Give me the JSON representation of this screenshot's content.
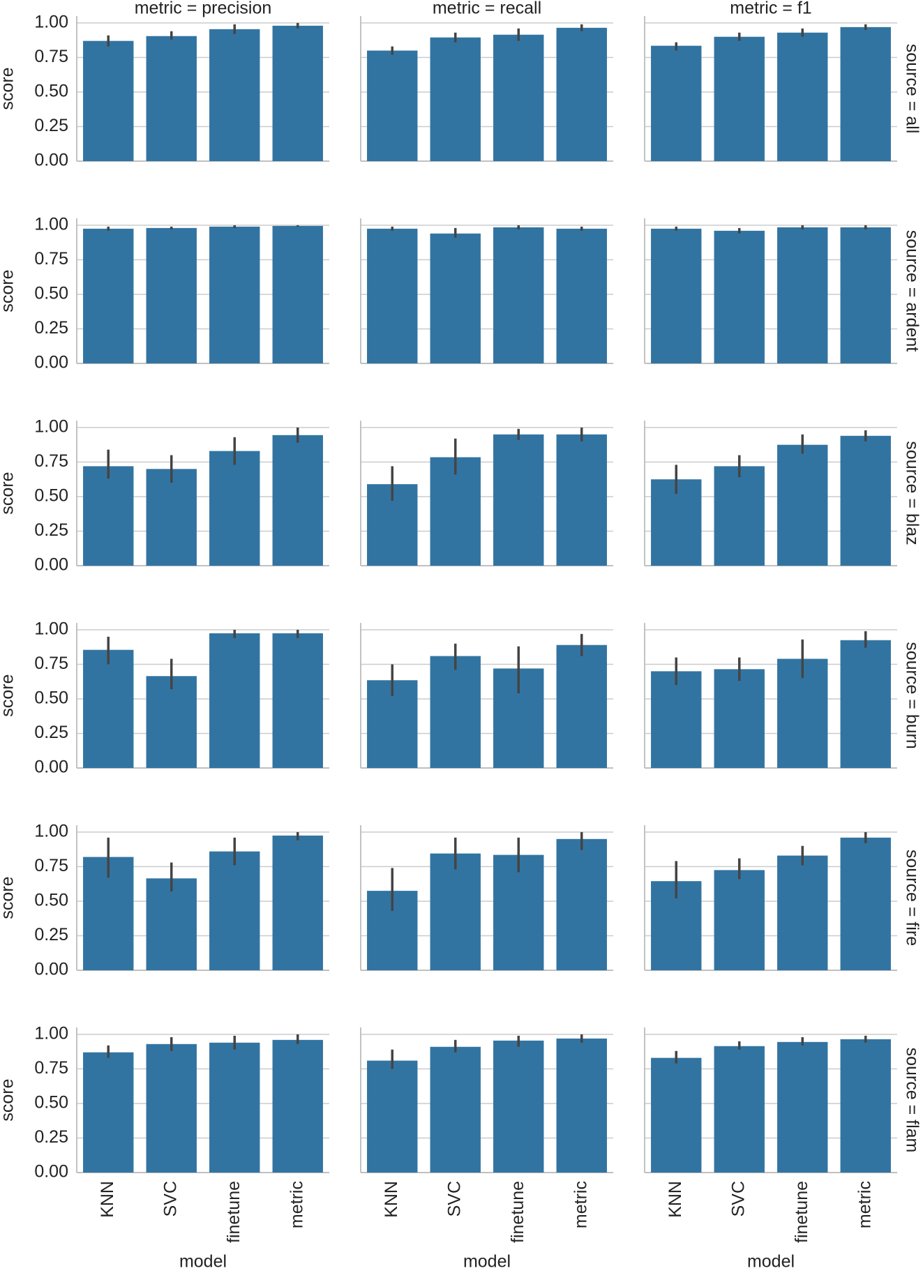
{
  "chart_data": {
    "type": "bar",
    "col_titles": [
      "metric = precision",
      "metric = recall",
      "metric = f1"
    ],
    "row_titles": [
      "source = all",
      "source = ardent",
      "source = blaz",
      "source = burn",
      "source = fire",
      "source = flam"
    ],
    "categories": [
      "KNN",
      "SVC",
      "finetune",
      "metric"
    ],
    "ylabel": "score",
    "xlabel": "model",
    "ylim": [
      0,
      1.05
    ],
    "yticks": [
      {
        "value": 0,
        "label": "0.00"
      },
      {
        "value": 0.25,
        "label": "0.25"
      },
      {
        "value": 0.5,
        "label": "0.50"
      },
      {
        "value": 0.75,
        "label": "0.75"
      },
      {
        "value": 1,
        "label": "1.00"
      }
    ],
    "color": "#3274a1",
    "error_color": "#444444",
    "grid": true,
    "panels": [
      [
        {
          "values": [
            0.87,
            0.905,
            0.955,
            0.98
          ],
          "ci_low": [
            0.83,
            0.88,
            0.92,
            0.96
          ],
          "ci_high": [
            0.91,
            0.94,
            0.99,
            1.0
          ]
        },
        {
          "values": [
            0.8,
            0.895,
            0.915,
            0.965
          ],
          "ci_low": [
            0.77,
            0.86,
            0.87,
            0.94
          ],
          "ci_high": [
            0.83,
            0.93,
            0.96,
            0.99
          ]
        },
        {
          "values": [
            0.835,
            0.9,
            0.93,
            0.97
          ],
          "ci_low": [
            0.8,
            0.87,
            0.9,
            0.95
          ],
          "ci_high": [
            0.86,
            0.93,
            0.96,
            0.99
          ]
        }
      ],
      [
        {
          "values": [
            0.975,
            0.98,
            0.99,
            0.995
          ],
          "ci_low": [
            0.96,
            0.97,
            0.98,
            0.99
          ],
          "ci_high": [
            0.99,
            0.99,
            1.0,
            1.0
          ]
        },
        {
          "values": [
            0.975,
            0.94,
            0.985,
            0.975
          ],
          "ci_low": [
            0.96,
            0.91,
            0.97,
            0.96
          ],
          "ci_high": [
            0.99,
            0.98,
            1.0,
            0.99
          ]
        },
        {
          "values": [
            0.975,
            0.96,
            0.985,
            0.985
          ],
          "ci_low": [
            0.96,
            0.94,
            0.97,
            0.97
          ],
          "ci_high": [
            0.99,
            0.98,
            1.0,
            1.0
          ]
        }
      ],
      [
        {
          "values": [
            0.72,
            0.7,
            0.83,
            0.945
          ],
          "ci_low": [
            0.63,
            0.6,
            0.73,
            0.89
          ],
          "ci_high": [
            0.84,
            0.8,
            0.93,
            1.0
          ]
        },
        {
          "values": [
            0.59,
            0.785,
            0.95,
            0.95
          ],
          "ci_low": [
            0.47,
            0.66,
            0.91,
            0.9
          ],
          "ci_high": [
            0.72,
            0.92,
            0.99,
            1.0
          ]
        },
        {
          "values": [
            0.625,
            0.72,
            0.875,
            0.94
          ],
          "ci_low": [
            0.52,
            0.64,
            0.81,
            0.9
          ],
          "ci_high": [
            0.73,
            0.8,
            0.95,
            0.98
          ]
        }
      ],
      [
        {
          "values": [
            0.855,
            0.665,
            0.975,
            0.975
          ],
          "ci_low": [
            0.75,
            0.57,
            0.94,
            0.94
          ],
          "ci_high": [
            0.95,
            0.79,
            1.0,
            1.0
          ]
        },
        {
          "values": [
            0.635,
            0.81,
            0.72,
            0.89
          ],
          "ci_low": [
            0.52,
            0.71,
            0.54,
            0.81
          ],
          "ci_high": [
            0.75,
            0.9,
            0.88,
            0.97
          ]
        },
        {
          "values": [
            0.7,
            0.715,
            0.79,
            0.925
          ],
          "ci_low": [
            0.6,
            0.63,
            0.65,
            0.87
          ],
          "ci_high": [
            0.8,
            0.8,
            0.93,
            0.99
          ]
        }
      ],
      [
        {
          "values": [
            0.82,
            0.665,
            0.86,
            0.975
          ],
          "ci_low": [
            0.67,
            0.57,
            0.76,
            0.94
          ],
          "ci_high": [
            0.96,
            0.78,
            0.96,
            1.0
          ]
        },
        {
          "values": [
            0.575,
            0.845,
            0.835,
            0.95
          ],
          "ci_low": [
            0.43,
            0.73,
            0.71,
            0.87
          ],
          "ci_high": [
            0.74,
            0.96,
            0.96,
            1.0
          ]
        },
        {
          "values": [
            0.645,
            0.725,
            0.83,
            0.96
          ],
          "ci_low": [
            0.52,
            0.66,
            0.76,
            0.92
          ],
          "ci_high": [
            0.79,
            0.81,
            0.9,
            1.0
          ]
        }
      ],
      [
        {
          "values": [
            0.87,
            0.93,
            0.94,
            0.96
          ],
          "ci_low": [
            0.83,
            0.88,
            0.89,
            0.93
          ],
          "ci_high": [
            0.92,
            0.98,
            0.99,
            1.0
          ]
        },
        {
          "values": [
            0.81,
            0.91,
            0.955,
            0.97
          ],
          "ci_low": [
            0.75,
            0.87,
            0.91,
            0.94
          ],
          "ci_high": [
            0.89,
            0.96,
            0.99,
            1.0
          ]
        },
        {
          "values": [
            0.83,
            0.915,
            0.945,
            0.965
          ],
          "ci_low": [
            0.79,
            0.89,
            0.92,
            0.94
          ],
          "ci_high": [
            0.88,
            0.95,
            0.98,
            0.99
          ]
        }
      ]
    ]
  }
}
